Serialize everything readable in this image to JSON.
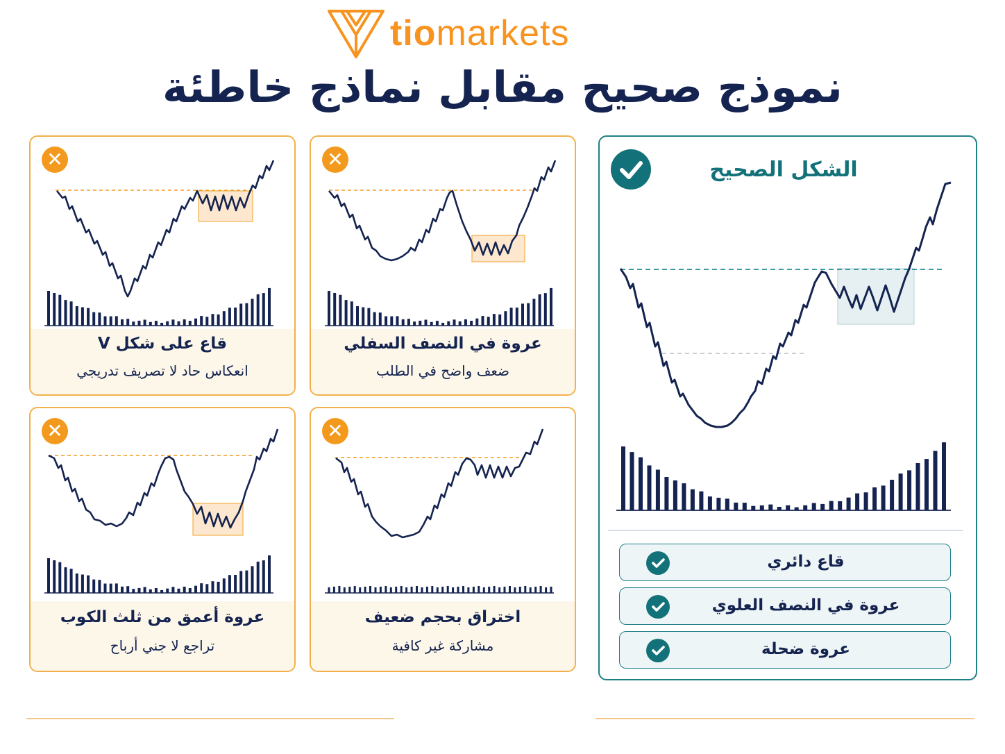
{
  "brand": {
    "name_bold": "tio",
    "name_light": "markets",
    "color": "#f7931e"
  },
  "title": "نموذج صحيح مقابل نماذج خاطئة",
  "colors": {
    "navy": "#14234f",
    "orange": "#f39a1e",
    "teal": "#137279"
  },
  "correct": {
    "title": "الشكل الصحيح",
    "icon": "check-circle-icon",
    "checklist": [
      "قاع دائري",
      "عروة في النصف العلوي",
      "عروة ضحلة"
    ]
  },
  "wrong_patterns": [
    {
      "title": "قاع على شكل V",
      "subtitle": "انعكاس حاد لا تصريف تدريجي",
      "icon": "x-circle-icon"
    },
    {
      "title": "عروة في النصف السفلي",
      "subtitle": "ضعف واضح في الطلب",
      "icon": "x-circle-icon"
    },
    {
      "title": "عروة أعمق من ثلث الكوب",
      "subtitle": "تراجع لا جني أرباح",
      "icon": "x-circle-icon"
    },
    {
      "title": "اختراق بحجم ضعيف",
      "subtitle": "مشاركة غير كافية",
      "icon": "x-circle-icon"
    }
  ]
}
